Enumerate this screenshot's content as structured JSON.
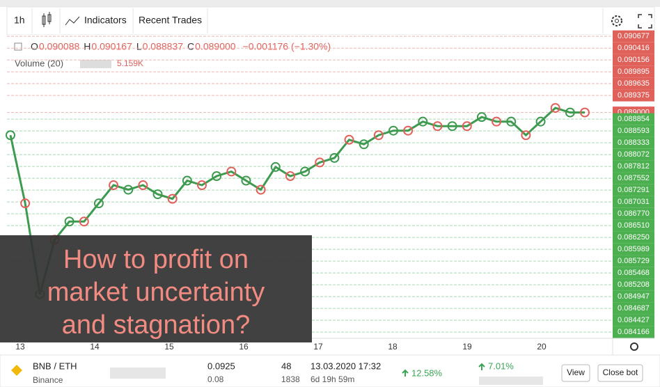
{
  "toolbar": {
    "interval": "1h",
    "indicators": "Indicators",
    "recent_trades": "Recent Trades"
  },
  "legend": {
    "ohlc": [
      {
        "key": "O",
        "value": "0.090088"
      },
      {
        "key": "H",
        "value": "0.090167"
      },
      {
        "key": "L",
        "value": "0.088837"
      },
      {
        "key": "C",
        "value": "0.089000"
      }
    ],
    "change": "−0.001176 (−1.30%)",
    "volume": "Volume (20)",
    "volume_value": "5.159K"
  },
  "chart_data": {
    "type": "line",
    "color": "#3d9a4f",
    "values": [
      0.0885,
      0.087,
      0.085,
      0.0862,
      0.0866,
      0.0866,
      0.087,
      0.0874,
      0.0873,
      0.0874,
      0.0872,
      0.0871,
      0.0875,
      0.0874,
      0.0876,
      0.0877,
      0.0875,
      0.0873,
      0.0878,
      0.0876,
      0.0877,
      0.0879,
      0.088,
      0.0884,
      0.0883,
      0.0885,
      0.0886,
      0.0886,
      0.0888,
      0.0887,
      0.0887,
      0.0887,
      0.0889,
      0.0888,
      0.0888,
      0.0885,
      0.0888,
      0.0891,
      0.089,
      0.089
    ],
    "ylim": [
      0.08403,
      0.09071
    ],
    "yticks": [
      {
        "value": 0.090677,
        "label": "0.090677"
      },
      {
        "value": 0.090416,
        "label": "0.090416"
      },
      {
        "value": 0.090156,
        "label": "0.090156"
      },
      {
        "value": 0.089895,
        "label": "0.089895"
      },
      {
        "value": 0.089635,
        "label": "0.089635"
      },
      {
        "value": 0.089375,
        "label": "0.089375"
      },
      {
        "value": 0.089,
        "label": "0.089000"
      },
      {
        "value": 0.088854,
        "label": "0.088854"
      },
      {
        "value": 0.088593,
        "label": "0.088593"
      },
      {
        "value": 0.088333,
        "label": "0.088333"
      },
      {
        "value": 0.088072,
        "label": "0.088072"
      },
      {
        "value": 0.087812,
        "label": "0.087812"
      },
      {
        "value": 0.087552,
        "label": "0.087552"
      },
      {
        "value": 0.087291,
        "label": "0.087291"
      },
      {
        "value": 0.087031,
        "label": "0.087031"
      },
      {
        "value": 0.08677,
        "label": "0.086770"
      },
      {
        "value": 0.08651,
        "label": "0.086510"
      },
      {
        "value": 0.08625,
        "label": "0.086250"
      },
      {
        "value": 0.085989,
        "label": "0.085989"
      },
      {
        "value": 0.085729,
        "label": "0.085729"
      },
      {
        "value": 0.085468,
        "label": "0.085468"
      },
      {
        "value": 0.085208,
        "label": "0.085208"
      },
      {
        "value": 0.084947,
        "label": "0.084947"
      },
      {
        "value": 0.084687,
        "label": "0.084687"
      },
      {
        "value": 0.084427,
        "label": "0.084427"
      },
      {
        "value": 0.084166,
        "label": "0.084166"
      }
    ],
    "day_labels": [
      "13",
      "14",
      "15",
      "16",
      "17",
      "18",
      "19",
      "20"
    ]
  },
  "overlay": {
    "lines": [
      "How to profit on",
      "market uncertainty",
      "and stagnation?"
    ]
  },
  "bot_row": {
    "pair": "BNB / ETH",
    "exchange": "Binance",
    "price": "0.0925",
    "price_sub": "0.08",
    "trades": "48",
    "trades_sub": "1838",
    "started": "13.03.2020 17:32",
    "duration": "6d 19h 59m",
    "profit": "12.58%",
    "profit2": "7.01%",
    "view": "View",
    "close": "Close bot"
  }
}
